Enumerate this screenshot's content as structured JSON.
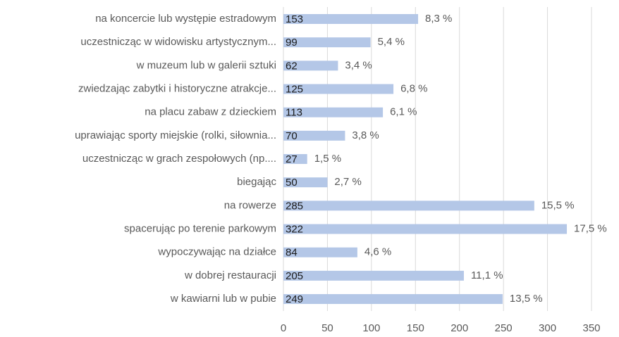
{
  "chart_data": {
    "type": "bar",
    "orientation": "horizontal",
    "categories": [
      "na koncercie lub występie estradowym",
      "uczestnicząc w widowisku artystycznym...",
      "w muzeum lub w galerii sztuki",
      "zwiedzając zabytki i historyczne atrakcje...",
      "na placu zabaw z dzieckiem",
      "uprawiając sporty miejskie (rolki, siłownia...",
      "uczestnicząc w grach zespołowych (np....",
      "biegając",
      "na rowerze",
      "spacerując po terenie parkowym",
      "wypoczywając na działce",
      "w dobrej restauracji",
      "w kawiarni lub w pubie"
    ],
    "values": [
      153,
      99,
      62,
      125,
      113,
      70,
      27,
      50,
      285,
      322,
      84,
      205,
      249
    ],
    "percent_labels": [
      "8,3 %",
      "5,4 %",
      "3,4 %",
      "6,8 %",
      "6,1 %",
      "3,8 %",
      "1,5 %",
      "2,7 %",
      "15,5 %",
      "17,5 %",
      "4,6 %",
      "11,1 %",
      "13,5 %"
    ],
    "color": "#b4c7e7",
    "xlim": [
      0,
      350
    ],
    "xticks": [
      0,
      50,
      100,
      150,
      200,
      250,
      300,
      350
    ],
    "grid": true
  }
}
